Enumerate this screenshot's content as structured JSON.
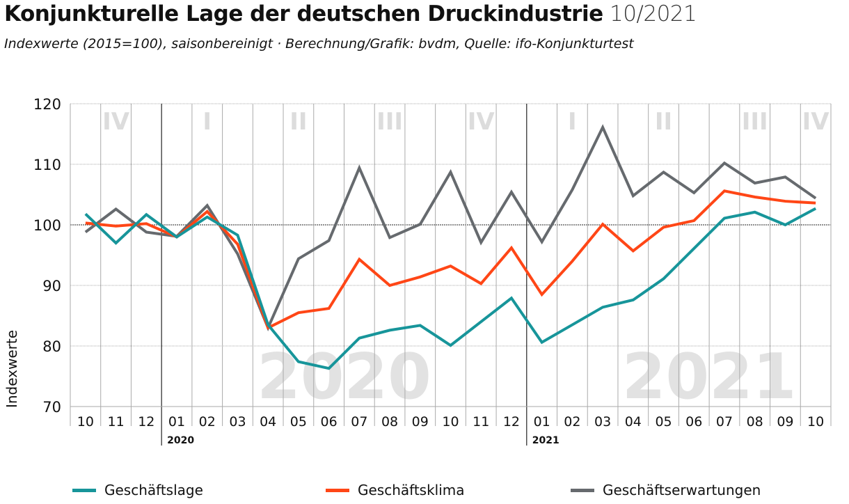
{
  "header": {
    "title": "Konjunkturelle Lage der deutschen Druckindustrie",
    "date": "10/2021",
    "subtitle": "Indexwerte (2015=100), saisonbereinigt · Berechnung/Grafik: bvdm, Quelle: ifo-Konjunkturtest"
  },
  "chart_data": {
    "type": "line",
    "title": "Konjunkturelle Lage der deutschen Druckindustrie 10/2021",
    "ylabel": "Indexwerte",
    "xlabel": "",
    "ylim": [
      70,
      120
    ],
    "yticks": [
      70,
      80,
      90,
      100,
      110,
      120
    ],
    "grid": true,
    "legend": "bottom",
    "categories": [
      "10",
      "11",
      "12",
      "01",
      "02",
      "03",
      "04",
      "05",
      "06",
      "07",
      "08",
      "09",
      "10",
      "11",
      "12",
      "01",
      "02",
      "03",
      "04",
      "05",
      "06",
      "07",
      "08",
      "09",
      "10"
    ],
    "year_labels": [
      {
        "label": "2020",
        "at": 3
      },
      {
        "label": "2021",
        "at": 15
      }
    ],
    "year_watermarks": [
      {
        "label": "2020",
        "at": 8
      },
      {
        "label": "2021",
        "at": 20
      }
    ],
    "quarters": [
      {
        "label": "IV",
        "from": 0,
        "to": 3
      },
      {
        "label": "I",
        "from": 3,
        "to": 6
      },
      {
        "label": "II",
        "from": 6,
        "to": 9
      },
      {
        "label": "III",
        "from": 9,
        "to": 12
      },
      {
        "label": "IV",
        "from": 12,
        "to": 15
      },
      {
        "label": "I",
        "from": 15,
        "to": 18
      },
      {
        "label": "II",
        "from": 18,
        "to": 21
      },
      {
        "label": "III",
        "from": 21,
        "to": 24
      },
      {
        "label": "IV",
        "from": 24,
        "to": 25
      }
    ],
    "series": [
      {
        "name": "Geschäftslage",
        "color": "#17959a",
        "values": [
          101.8,
          97.0,
          101.7,
          98.0,
          101.3,
          98.3,
          83.5,
          77.4,
          76.3,
          81.3,
          82.6,
          83.4,
          80.1,
          84.0,
          87.9,
          80.6,
          83.5,
          86.4,
          87.6,
          91.1,
          96.1,
          101.1,
          102.1,
          100.0,
          102.7
        ]
      },
      {
        "name": "Geschäftsklima",
        "color": "#ff4616",
        "values": [
          100.3,
          99.8,
          100.2,
          98.0,
          102.2,
          96.8,
          83.0,
          85.5,
          86.2,
          94.3,
          90.0,
          91.4,
          93.2,
          90.3,
          96.2,
          88.5,
          94.0,
          100.1,
          95.7,
          99.6,
          100.7,
          105.6,
          104.6,
          103.9,
          103.6
        ]
      },
      {
        "name": "Geschäftserwartungen",
        "color": "#666a6e",
        "values": [
          98.8,
          102.6,
          98.8,
          98.1,
          103.2,
          95.2,
          83.0,
          94.4,
          97.4,
          109.4,
          97.9,
          100.1,
          108.7,
          97.1,
          105.4,
          97.2,
          105.8,
          116.1,
          104.8,
          108.7,
          105.3,
          110.2,
          106.9,
          107.9,
          104.4
        ]
      }
    ]
  }
}
